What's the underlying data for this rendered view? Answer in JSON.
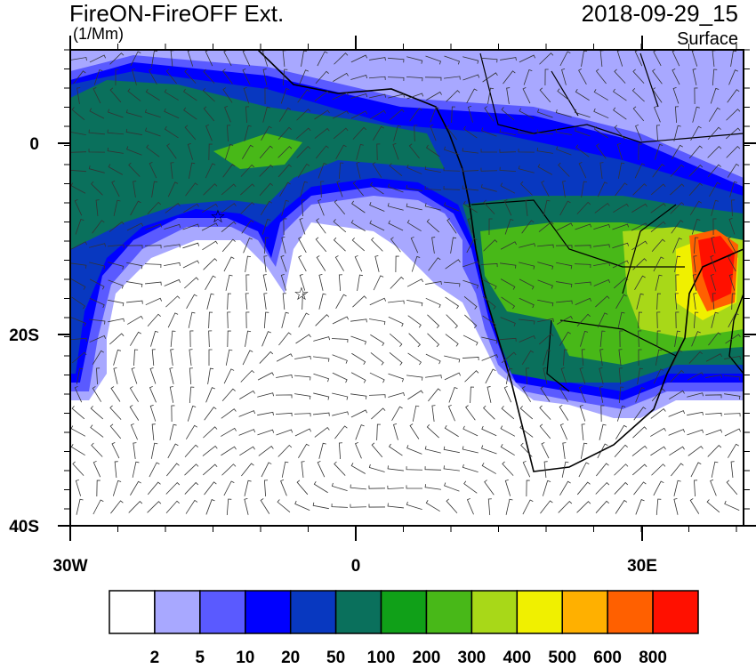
{
  "header": {
    "title": "FireON-FireOFF Ext.",
    "units": "(1/Mm)",
    "date": "2018-09-29_15",
    "level": "Surface"
  },
  "axes": {
    "y_labels": [
      "0",
      "20S",
      "40S"
    ],
    "x_labels": [
      "30W",
      "0",
      "30E"
    ]
  },
  "colorbar": {
    "colors": [
      "#ffffff",
      "#a8a8ff",
      "#5a5aff",
      "#0000ff",
      "#0838c0",
      "#0a705c",
      "#10a018",
      "#48b818",
      "#a8d818",
      "#f0f000",
      "#ffb000",
      "#ff6000",
      "#ff1000"
    ],
    "labels": [
      "2",
      "5",
      "10",
      "20",
      "50",
      "100",
      "200",
      "300",
      "400",
      "500",
      "600",
      "800"
    ]
  }
}
